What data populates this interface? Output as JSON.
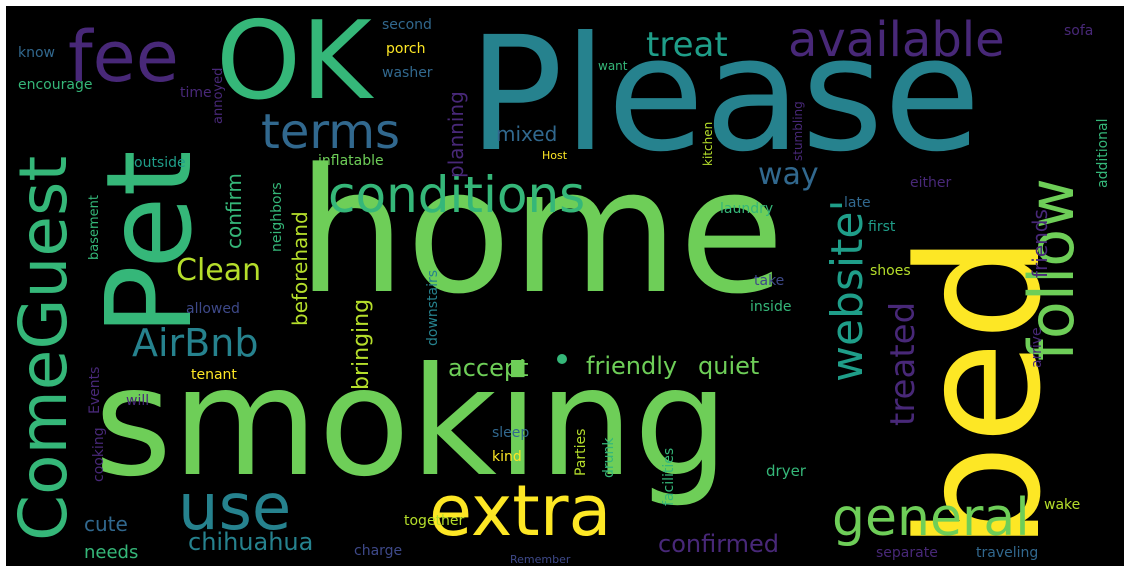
{
  "background_color": "#000000",
  "palette": [
    "#fde725",
    "#b5de2b",
    "#6ece58",
    "#35b779",
    "#1f9e89",
    "#26828e",
    "#31688e",
    "#3e4989",
    "#482878"
  ],
  "words": {
    "please": "Please",
    "home": "home",
    "smoking": "smoking",
    "bed": "bed",
    "pet": "Pet",
    "ok": "OK",
    "fee": "fee",
    "come_guest": "ComeGuest",
    "extra": "extra",
    "follow": "follow",
    "conditions": "conditions",
    "use": "use",
    "available": "available",
    "terms": "terms",
    "general": "general",
    "website": "website'",
    "airbnb": "AirBnb",
    "treat": "treat",
    "treated": "treated",
    "clean": "Clean",
    "way": "way",
    "accept": "accept",
    "friendly": "friendly",
    "quiet": "quiet",
    "bringing": "bringing",
    "chihuahua": "chihuahua",
    "confirmed": "confirmed",
    "mixed": "mixed",
    "planning": "planning",
    "confirm": "confirm",
    "beforehand": "beforehand",
    "friends": "friends",
    "cute": "cute",
    "needs": "needs",
    "together": "together",
    "charge": "charge",
    "dryer": "dryer",
    "laundry": "laundry",
    "late": "late",
    "first": "first",
    "shoes": "shoes",
    "take": "take",
    "inside": "inside",
    "downstairs": "downstairs",
    "sleep": "sleep",
    "drunk": "drunk",
    "kind": "kind",
    "parties": "Parties",
    "facilities": "facilities",
    "remember": "Remember",
    "separate": "separate",
    "traveling": "traveling",
    "wake": "wake",
    "arrive": "arrive",
    "additional": "additional",
    "stumbling": "stumbling",
    "kitchen": "kitchen",
    "host": "Host",
    "either": "either",
    "sofa": "sofa",
    "second": "second",
    "porch": "porch",
    "washer": "washer",
    "want": "want",
    "know": "know",
    "encourage": "encourage",
    "time": "time",
    "annoyed": "annoyed",
    "outside": "outside",
    "inflatable": "inflatable",
    "neighbors": "neighbors",
    "basement": "basement",
    "allowed": "allowed",
    "events": "Events",
    "will": "will",
    "cooking": "cooking",
    "tenant": "tenant"
  }
}
